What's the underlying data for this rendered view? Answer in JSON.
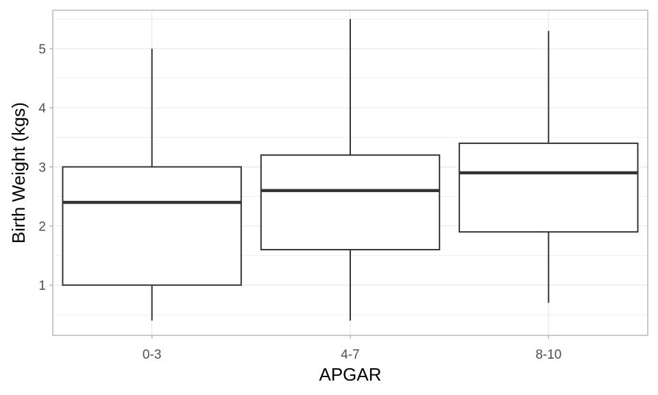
{
  "chart_data": {
    "type": "boxplot",
    "xlabel": "APGAR",
    "ylabel": "Birth Weight (kgs)",
    "categories": [
      "0-3",
      "4-7",
      "8-10"
    ],
    "boxes": [
      {
        "category": "0-3",
        "min": 0.4,
        "q1": 1.0,
        "median": 2.4,
        "q3": 3.0,
        "max": 5.0
      },
      {
        "category": "4-7",
        "min": 0.4,
        "q1": 1.6,
        "median": 2.6,
        "q3": 3.2,
        "max": 5.5
      },
      {
        "category": "8-10",
        "min": 0.7,
        "q1": 1.9,
        "median": 2.9,
        "q3": 3.4,
        "max": 5.3
      }
    ],
    "ylim": [
      0.15,
      5.65
    ],
    "yticks": [
      1,
      2,
      3,
      4,
      5
    ],
    "grid": true,
    "colors": {
      "box_fill": "#ffffff",
      "box_line": "#333333",
      "median": "#333333",
      "whisker": "#333333",
      "grid": "#ebebeb",
      "border": "#b3b3b3"
    }
  }
}
